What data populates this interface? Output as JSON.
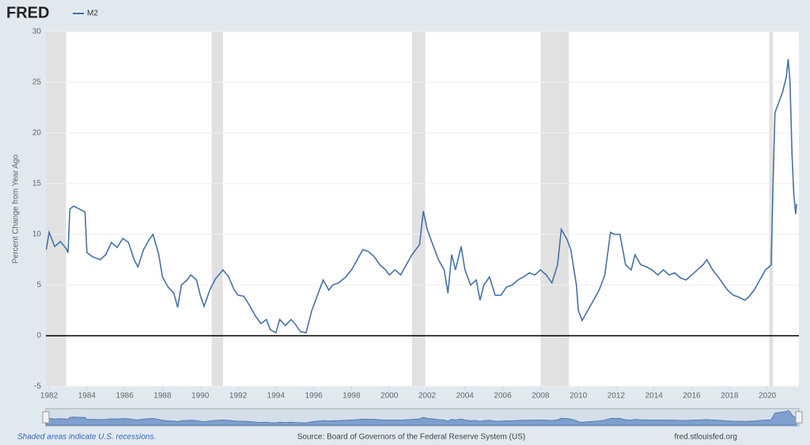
{
  "chart_data": {
    "type": "line",
    "logo": "FRED",
    "y_label": "Percent Change from Year Ago",
    "footer_left": "Shaded areas indicate U.S. recessions.",
    "footer_center": "Source: Board of Governors of the Federal Reserve System (US)",
    "footer_right": "fred.stlouisfed.org",
    "xlim": [
      1981.83,
      2021.67
    ],
    "xticks": [
      1982,
      1984,
      1986,
      1988,
      1990,
      1992,
      1994,
      1996,
      1998,
      2000,
      2002,
      2004,
      2006,
      2008,
      2010,
      2012,
      2014,
      2016,
      2018,
      2020
    ],
    "ylim": [
      -5,
      30
    ],
    "yticks": [
      -5,
      0,
      5,
      10,
      15,
      20,
      25,
      30
    ],
    "grid": true,
    "recessions": [
      [
        1981.6,
        1982.9
      ],
      [
        1990.6,
        1991.2
      ],
      [
        2001.2,
        2001.9
      ],
      [
        2008.0,
        2009.5
      ],
      [
        2020.1,
        2020.3
      ]
    ],
    "x": [
      1981.85,
      1982.0,
      1982.3,
      1982.6,
      1982.9,
      1983.0,
      1983.1,
      1983.3,
      1983.6,
      1983.9,
      1984.0,
      1984.3,
      1984.7,
      1985.0,
      1985.3,
      1985.6,
      1985.9,
      1986.2,
      1986.5,
      1986.7,
      1987.0,
      1987.3,
      1987.5,
      1987.8,
      1988.0,
      1988.3,
      1988.6,
      1988.8,
      1989.0,
      1989.3,
      1989.5,
      1989.8,
      1990.0,
      1990.2,
      1990.5,
      1990.8,
      1991.2,
      1991.5,
      1991.8,
      1992.0,
      1992.3,
      1992.6,
      1992.9,
      1993.2,
      1993.5,
      1993.7,
      1994.0,
      1994.2,
      1994.5,
      1994.8,
      1995.0,
      1995.3,
      1995.6,
      1995.9,
      1996.2,
      1996.5,
      1996.8,
      1997.0,
      1997.3,
      1997.7,
      1998.0,
      1998.3,
      1998.6,
      1998.9,
      1999.2,
      1999.5,
      1999.8,
      2000.0,
      2000.3,
      2000.6,
      2000.9,
      2001.2,
      2001.6,
      2001.8,
      2002.0,
      2002.3,
      2002.6,
      2002.9,
      2003.1,
      2003.3,
      2003.5,
      2003.8,
      2004.0,
      2004.3,
      2004.6,
      2004.8,
      2005.0,
      2005.3,
      2005.6,
      2005.9,
      2006.2,
      2006.5,
      2006.8,
      2007.1,
      2007.4,
      2007.7,
      2008.0,
      2008.3,
      2008.6,
      2008.9,
      2009.1,
      2009.4,
      2009.6,
      2009.9,
      2010.0,
      2010.2,
      2010.5,
      2010.8,
      2011.1,
      2011.4,
      2011.7,
      2011.9,
      2012.2,
      2012.5,
      2012.8,
      2013.0,
      2013.3,
      2013.6,
      2013.9,
      2014.2,
      2014.5,
      2014.8,
      2015.1,
      2015.4,
      2015.7,
      2016.0,
      2016.3,
      2016.6,
      2016.8,
      2017.1,
      2017.4,
      2017.7,
      2017.9,
      2018.2,
      2018.5,
      2018.8,
      2019.0,
      2019.3,
      2019.6,
      2019.9,
      2020.1,
      2020.2,
      2020.3,
      2020.4,
      2020.6,
      2020.8,
      2021.0,
      2021.1,
      2021.2,
      2021.3,
      2021.4,
      2021.5,
      2021.55
    ],
    "series": [
      {
        "name": "M2",
        "color": "#4572a7",
        "values": [
          8.5,
          10.2,
          8.8,
          9.3,
          8.6,
          8.2,
          12.5,
          12.8,
          12.5,
          12.2,
          8.2,
          7.8,
          7.5,
          8.0,
          9.2,
          8.7,
          9.6,
          9.2,
          7.5,
          6.8,
          8.5,
          9.5,
          10.0,
          8.0,
          5.8,
          4.8,
          4.2,
          2.8,
          5.0,
          5.5,
          6.0,
          5.5,
          4.0,
          2.9,
          4.5,
          5.6,
          6.5,
          5.8,
          4.5,
          4.0,
          3.9,
          3.0,
          2.0,
          1.2,
          1.6,
          0.6,
          0.3,
          1.6,
          1.0,
          1.6,
          1.2,
          0.4,
          0.3,
          2.5,
          4.0,
          5.5,
          4.5,
          5.0,
          5.2,
          5.8,
          6.5,
          7.5,
          8.5,
          8.3,
          7.8,
          7.0,
          6.5,
          6.0,
          6.5,
          6.0,
          7.0,
          8.0,
          9.0,
          12.3,
          10.5,
          9.0,
          7.5,
          6.5,
          4.2,
          8.0,
          6.5,
          8.8,
          6.5,
          5.0,
          5.5,
          3.5,
          5.0,
          5.8,
          4.0,
          4.0,
          4.8,
          5.0,
          5.5,
          5.8,
          6.2,
          6.0,
          6.5,
          6.0,
          5.2,
          7.0,
          10.5,
          9.5,
          8.5,
          5.0,
          2.5,
          1.5,
          2.5,
          3.5,
          4.5,
          6.0,
          10.2,
          10.0,
          10.0,
          7.0,
          6.5,
          8.0,
          7.0,
          6.8,
          6.5,
          6.0,
          6.5,
          6.0,
          6.2,
          5.7,
          5.5,
          6.0,
          6.5,
          7.0,
          7.5,
          6.5,
          5.8,
          5.0,
          4.5,
          4.0,
          3.8,
          3.5,
          3.8,
          4.5,
          5.5,
          6.5,
          6.8,
          7.0,
          15.0,
          22.0,
          23.0,
          24.0,
          25.5,
          27.3,
          25.0,
          18.0,
          14.0,
          12.0,
          13.0
        ]
      }
    ]
  }
}
